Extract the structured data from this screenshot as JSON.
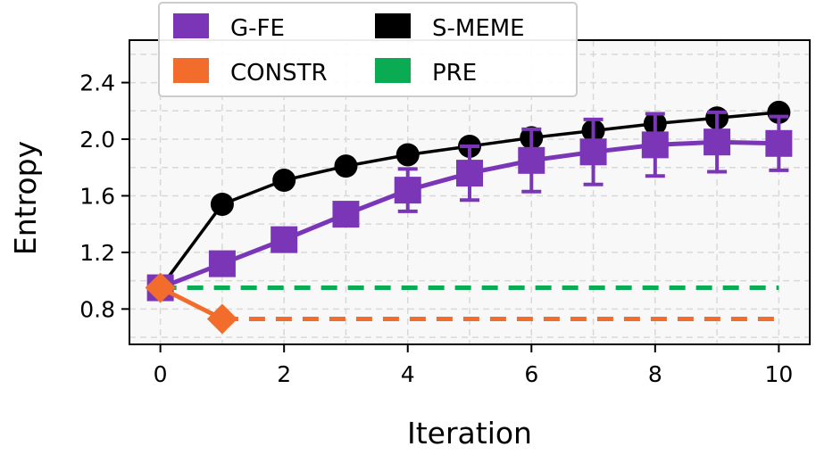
{
  "chart_data": {
    "type": "line",
    "title": "",
    "xlabel": "Iteration",
    "ylabel": "Entropy",
    "xlim": [
      -0.5,
      10.5
    ],
    "ylim": [
      0.55,
      2.7
    ],
    "xticks": [
      "0",
      "2",
      "4",
      "6",
      "8",
      "10"
    ],
    "yticks": [
      "0.8",
      "1.2",
      "1.6",
      "2.0",
      "2.4"
    ],
    "grid": true,
    "legend_position": "top-left",
    "series": [
      {
        "name": "G-FE",
        "color": "#7b36b8",
        "marker": "square",
        "x": [
          0,
          1,
          2,
          3,
          4,
          5,
          6,
          7,
          8,
          9,
          10
        ],
        "y": [
          0.95,
          1.12,
          1.29,
          1.47,
          1.64,
          1.76,
          1.85,
          1.91,
          1.96,
          1.98,
          1.97
        ],
        "yerr": [
          0.0,
          0.03,
          0.05,
          0.06,
          0.15,
          0.19,
          0.22,
          0.23,
          0.22,
          0.21,
          0.19
        ]
      },
      {
        "name": "S-MEME",
        "color": "#000000",
        "marker": "circle",
        "x": [
          0,
          1,
          2,
          3,
          4,
          5,
          6,
          7,
          8,
          9,
          10
        ],
        "y": [
          0.95,
          1.54,
          1.71,
          1.81,
          1.89,
          1.95,
          2.01,
          2.06,
          2.11,
          2.15,
          2.19
        ]
      },
      {
        "name": "CONSTR",
        "color": "#f26c2b",
        "marker": "diamond",
        "x": [
          0,
          1
        ],
        "y": [
          0.95,
          0.73
        ],
        "dashed_level": 0.73,
        "dashed_from": 1,
        "dashed_to": 10
      },
      {
        "name": "PRE",
        "color": "#0aab52",
        "marker": "none",
        "dashed_level": 0.95,
        "dashed_from": 0,
        "dashed_to": 10
      }
    ]
  }
}
